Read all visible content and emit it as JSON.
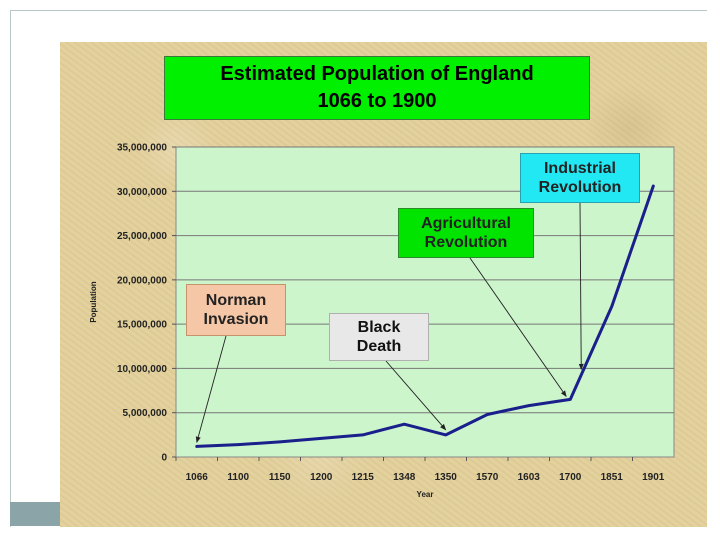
{
  "chart_data": {
    "type": "line",
    "title": "Estimated Population of England",
    "subtitle": "1066 to 1900",
    "xlabel": "Year",
    "ylabel": "Population",
    "categories": [
      "1066",
      "1100",
      "1150",
      "1200",
      "1215",
      "1348",
      "1350",
      "1570",
      "1603",
      "1700",
      "1851",
      "1901"
    ],
    "series": [
      {
        "values": [
          1200000,
          1400000,
          1700000,
          2100000,
          2500000,
          3700000,
          2500000,
          4800000,
          5800000,
          6500000,
          17000000,
          30600000
        ]
      }
    ],
    "ylim": [
      0,
      35000000
    ],
    "y_ticks": [
      "0",
      "5,000,000",
      "10,000,000",
      "15,000,000",
      "20,000,000",
      "25,000,000",
      "30,000,000",
      "35,000,000"
    ],
    "grid": true,
    "annotations": [
      {
        "key": "norman",
        "lines": [
          "Norman",
          "Invasion"
        ],
        "target_category": "1066"
      },
      {
        "key": "black",
        "lines": [
          "Black",
          "Death"
        ],
        "target_category": "1350"
      },
      {
        "key": "agri",
        "lines": [
          "Agricultural",
          "Revolution"
        ],
        "target_category": "1700"
      },
      {
        "key": "ind",
        "lines": [
          "Industrial",
          "Revolution"
        ],
        "target_category": "1700"
      }
    ],
    "colors": {
      "plot_background": "#ccf5cc",
      "line": "#1a1f8c",
      "title_box": "#00f000",
      "gridline": "#777777"
    }
  }
}
